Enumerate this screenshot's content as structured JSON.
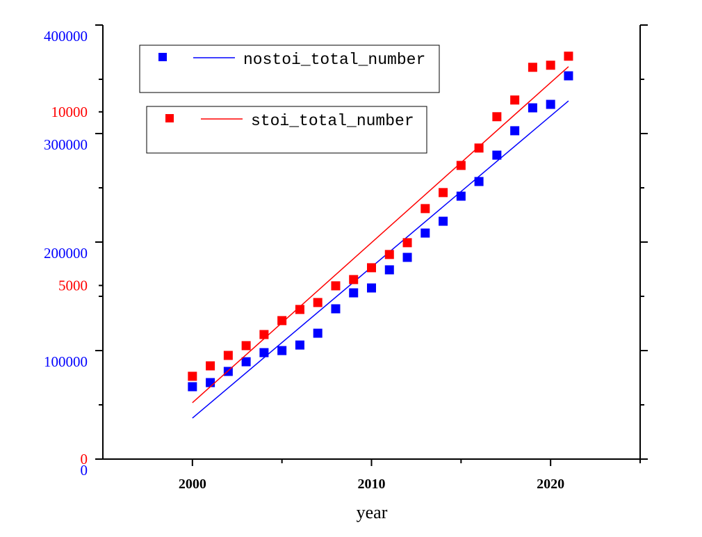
{
  "chart_data": {
    "type": "scatter",
    "xlabel": "year",
    "xlim": [
      1995,
      2025
    ],
    "xticks": [
      2000,
      2010,
      2020
    ],
    "xminorticks": [
      2005,
      2015,
      2025
    ],
    "ylim": [
      0,
      400000
    ],
    "yticks": [
      0,
      100000,
      200000,
      300000,
      400000
    ],
    "yminorticks": [
      50000,
      150000,
      250000,
      350000
    ],
    "y2lim": [
      0,
      12500
    ],
    "y2ticks": [
      0,
      5000,
      10000
    ],
    "x": [
      2000,
      2001,
      2002,
      2003,
      2004,
      2005,
      2006,
      2007,
      2008,
      2009,
      2010,
      2011,
      2012,
      2013,
      2014,
      2015,
      2016,
      2017,
      2018,
      2019,
      2020,
      2021
    ],
    "series": [
      {
        "name": "nostoi_total_number",
        "color": "#0000ff",
        "values": [
          66700,
          70500,
          80800,
          89700,
          98100,
          100000,
          105100,
          116000,
          138500,
          153200,
          157700,
          174400,
          185900,
          208300,
          219200,
          242300,
          255800,
          280100,
          302600,
          323700,
          326900,
          353200
        ],
        "fit_x": [
          2000,
          2021
        ],
        "fit_values": [
          37800,
          330100
        ]
      },
      {
        "name": "stoi_total_number",
        "color": "#ff0000",
        "axis": "y2",
        "values": [
          2385,
          2685,
          2986,
          3267,
          3587,
          3988,
          4309,
          4509,
          4990,
          5170,
          5511,
          5892,
          6232,
          7214,
          7675,
          8457,
          8958,
          9860,
          10341,
          11283,
          11343,
          11603
        ],
        "fit_x": [
          2000,
          2021
        ],
        "fit_values": [
          1623,
          11303
        ]
      }
    ]
  }
}
